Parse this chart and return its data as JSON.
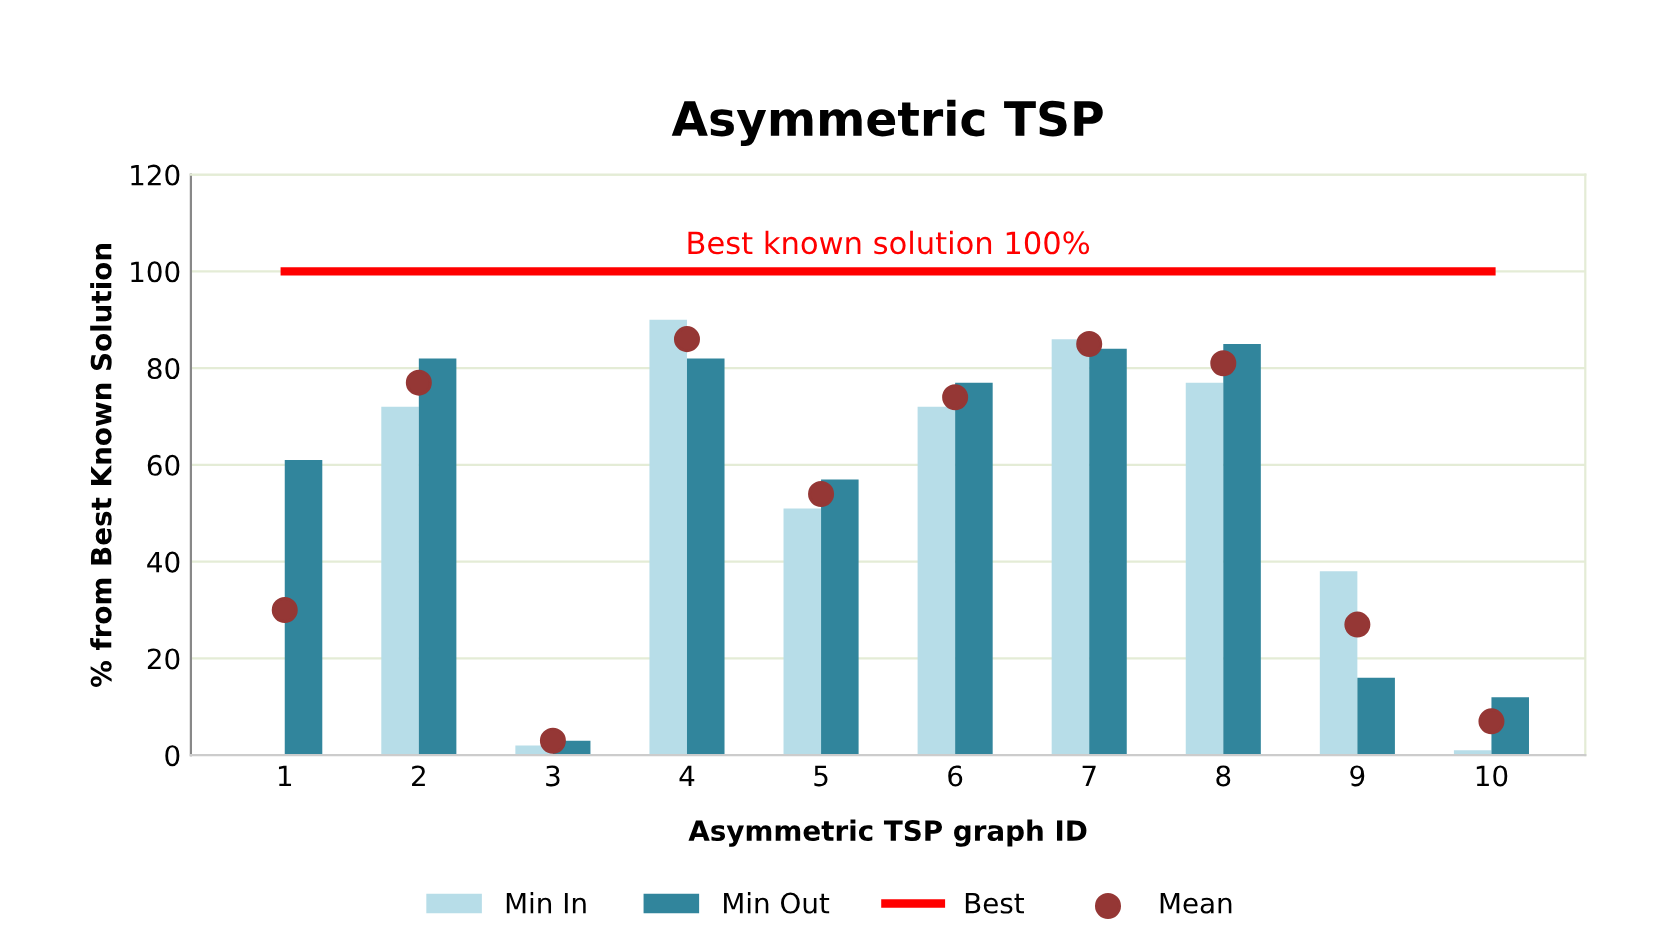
{
  "chart_data": {
    "type": "bar",
    "title": "Asymmetric TSP",
    "xlabel": "Asymmetric TSP graph ID",
    "ylabel": "% from Best Known Solution",
    "categories": [
      "1",
      "2",
      "3",
      "4",
      "5",
      "6",
      "7",
      "8",
      "9",
      "10"
    ],
    "series": [
      {
        "name": "Min In",
        "color": "#b7dde8",
        "values": [
          0,
          72,
          2,
          90,
          51,
          72,
          86,
          77,
          38,
          1
        ]
      },
      {
        "name": "Min Out",
        "color": "#31859c",
        "values": [
          61,
          82,
          3,
          82,
          57,
          77,
          84,
          85,
          16,
          12
        ]
      },
      {
        "name": "Best",
        "type": "line",
        "color": "#ff0000",
        "values": [
          100,
          100,
          100,
          100,
          100,
          100,
          100,
          100,
          100,
          100
        ]
      },
      {
        "name": "Mean",
        "type": "scatter",
        "color": "#953735",
        "marker": "circle",
        "values": [
          30,
          77,
          3,
          86,
          54,
          74,
          85,
          81,
          27,
          7
        ]
      }
    ],
    "annotations": [
      {
        "text": "Best known solution 100%",
        "x": "6",
        "y": 100
      }
    ],
    "ylim": [
      0,
      120
    ],
    "yticks": [
      0,
      20,
      40,
      60,
      80,
      100,
      120
    ],
    "grid": "y",
    "legend": "bottom"
  }
}
